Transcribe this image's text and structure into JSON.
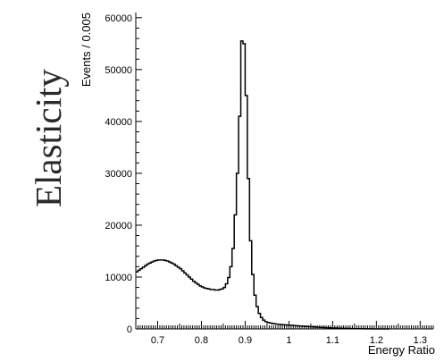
{
  "page": {
    "side_label": "Elasticity"
  },
  "chart_data": {
    "type": "line",
    "style": "step-histogram",
    "xlabel": "Energy Ratio",
    "ylabel": "Events / 0.005",
    "xlim": [
      0.65,
      1.33
    ],
    "ylim": [
      0,
      61000
    ],
    "x_ticks": [
      0.7,
      0.8,
      0.9,
      1,
      1.1,
      1.2,
      1.3
    ],
    "x_tick_labels": [
      "0.7",
      "0.8",
      "0.9",
      "1",
      "1.1",
      "1.2",
      "1.3"
    ],
    "y_ticks": [
      0,
      10000,
      20000,
      30000,
      40000,
      50000,
      60000
    ],
    "y_tick_labels": [
      "0",
      "10000",
      "20000",
      "30000",
      "40000",
      "50000",
      "60000"
    ],
    "bin_width": 0.005,
    "x_start": 0.65,
    "values": [
      11000,
      11300,
      11600,
      11900,
      12200,
      12500,
      12700,
      12900,
      13100,
      13200,
      13300,
      13300,
      13300,
      13200,
      13100,
      12900,
      12700,
      12500,
      12200,
      11900,
      11600,
      11200,
      10800,
      10400,
      10000,
      9600,
      9200,
      8900,
      8600,
      8300,
      8100,
      7900,
      7800,
      7700,
      7600,
      7600,
      7500,
      7500,
      7600,
      7700,
      8000,
      8700,
      9900,
      12000,
      15500,
      22000,
      30000,
      41000,
      55500,
      55000,
      45000,
      29000,
      17000,
      10500,
      6500,
      4300,
      3000,
      2200,
      1700,
      1400,
      1250,
      1150,
      1050,
      980,
      920,
      880,
      840,
      800,
      770,
      740,
      710,
      680,
      650,
      620,
      590,
      560,
      530,
      500,
      470,
      440,
      410,
      380,
      350,
      320,
      300,
      280,
      260,
      240,
      220,
      200,
      180,
      165,
      150,
      135,
      120,
      105,
      90,
      80,
      70,
      60,
      50,
      45,
      40,
      35,
      30,
      25,
      20,
      15,
      10,
      8,
      6,
      5,
      4,
      3,
      2,
      1
    ],
    "colors": {
      "line": "#000000",
      "axis": "#000000"
    },
    "grid": false,
    "legend": "none"
  }
}
